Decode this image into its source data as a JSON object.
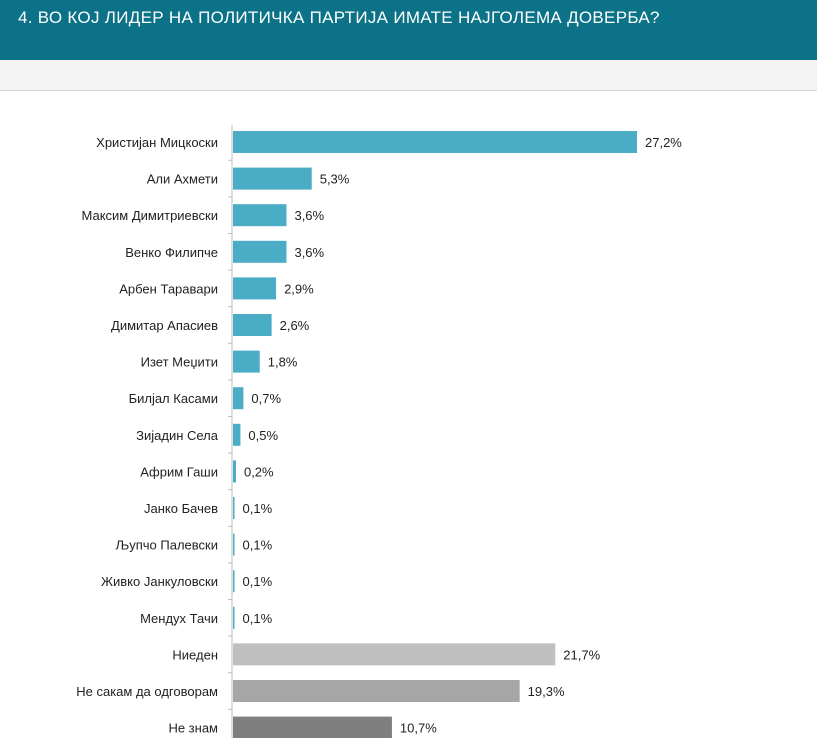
{
  "header": {
    "title": "4. ВО КОЈ ЛИДЕР НА ПОЛИТИЧКА ПАРТИЈА ИМАТЕ НАЈГОЛЕМА ДОВЕРБА?"
  },
  "colors": {
    "header_bg": "#0b7288",
    "bar_leader": "#4bacc6",
    "bar_none": "#bfbfbf",
    "bar_no_answer": "#a6a6a6",
    "bar_dont_know": "#7f7f7f"
  },
  "chart_data": {
    "type": "bar",
    "orientation": "horizontal",
    "title": "",
    "xlabel": "",
    "ylabel": "",
    "xlim": [
      0,
      27.2
    ],
    "grid": false,
    "legend": false,
    "categories": [
      "Христијан Мицкоски",
      "Али Ахмети",
      "Максим Димитриевски",
      "Венко Филипче",
      "Арбен Таравари",
      "Димитар Апасиев",
      "Изет Меџити",
      "Билјал Касами",
      "Зијадин Села",
      "Африм Гаши",
      "Јанко Бачев",
      "Љупчо Палевски",
      "Живко Јанкуловски",
      "Мендух Тачи",
      "Ниеден",
      "Не сакам да одговорам",
      "Не знам"
    ],
    "values": [
      27.2,
      5.3,
      3.6,
      3.6,
      2.9,
      2.6,
      1.8,
      0.7,
      0.5,
      0.2,
      0.1,
      0.1,
      0.1,
      0.1,
      21.7,
      19.3,
      10.7
    ],
    "value_labels": [
      "27,2%",
      "5,3%",
      "3,6%",
      "3,6%",
      "2,9%",
      "2,6%",
      "1,8%",
      "0,7%",
      "0,5%",
      "0,2%",
      "0,1%",
      "0,1%",
      "0,1%",
      "0,1%",
      "21,7%",
      "19,3%",
      "10,7%"
    ],
    "bar_colors": [
      "#4bacc6",
      "#4bacc6",
      "#4bacc6",
      "#4bacc6",
      "#4bacc6",
      "#4bacc6",
      "#4bacc6",
      "#4bacc6",
      "#4bacc6",
      "#4bacc6",
      "#4bacc6",
      "#4bacc6",
      "#4bacc6",
      "#4bacc6",
      "#bfbfbf",
      "#a6a6a6",
      "#7f7f7f"
    ]
  }
}
